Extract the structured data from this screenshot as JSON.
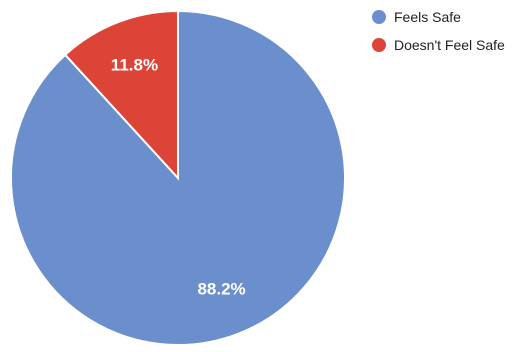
{
  "chart_data": {
    "type": "pie",
    "slices": [
      {
        "name": "Feels Safe",
        "value": 88.2,
        "label": "88.2%",
        "color": "#6a8fcc"
      },
      {
        "name": "Doesn't Feel Safe",
        "value": 11.8,
        "label": "11.8%",
        "color": "#dc4437"
      }
    ],
    "start_angle_deg": 0,
    "direction": "clockwise",
    "legend_position": "top-right"
  },
  "legend": {
    "items": [
      {
        "label": "Feels Safe",
        "color": "#6a8fcc"
      },
      {
        "label": "Doesn't Feel Safe",
        "color": "#dc4437"
      }
    ]
  }
}
